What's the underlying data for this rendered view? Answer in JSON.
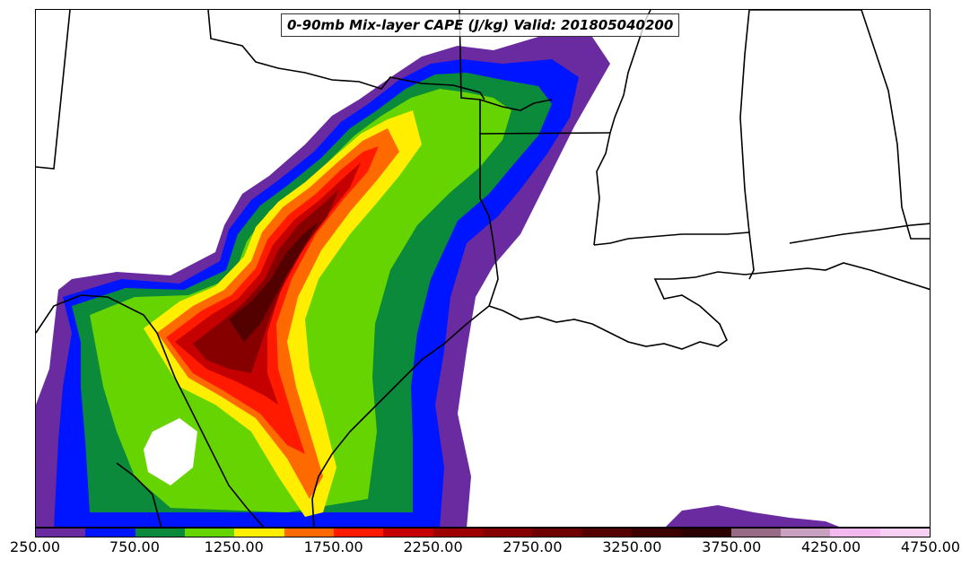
{
  "title": "0-90mb Mix-layer CAPE (J/kg) Valid: 201805040200",
  "colorbar": {
    "labels": [
      "250.00",
      "750.00",
      "1250.00",
      "1750.00",
      "2250.00",
      "2750.00",
      "3250.00",
      "3750.00",
      "4250.00",
      "4750.00"
    ],
    "colors": [
      "#6a2aa0",
      "#0015ff",
      "#0a8a3a",
      "#66d400",
      "#ffee00",
      "#ff6a00",
      "#ff1a00",
      "#c40000",
      "#9e0000",
      "#860000",
      "#6e0000",
      "#520000",
      "#3c0000",
      "#2a0000",
      "#976a86",
      "#c8a0c0",
      "#f4b8f0",
      "#f8d0f4"
    ]
  },
  "legend_min": 250,
  "legend_max": 4750,
  "legend_step": 250,
  "units": "J/kg"
}
